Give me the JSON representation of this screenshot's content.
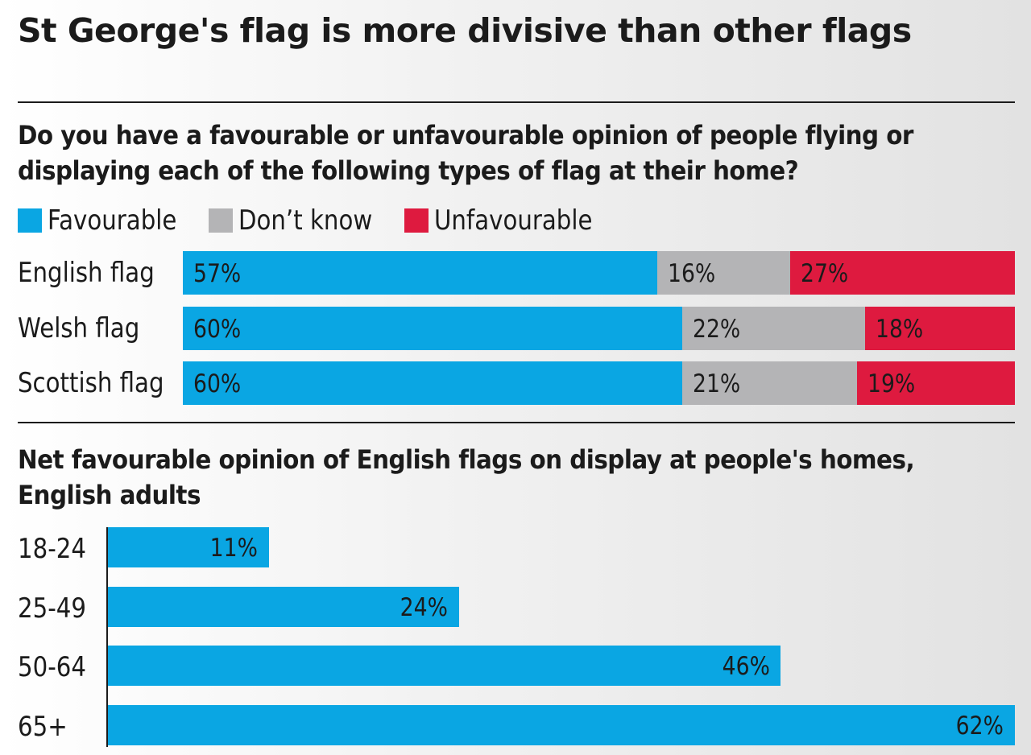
{
  "title": "St George's flag is more divisive than other flags",
  "colors": {
    "favourable": "#0aa6e3",
    "dont_know": "#b4b4b6",
    "unfavourable": "#de1a3f"
  },
  "chart_data": [
    {
      "type": "bar",
      "orientation": "horizontal",
      "stacked": true,
      "title": "Do you have a favourable or unfavourable opinion of people flying or displaying each of the following types of flag at their home?",
      "title_lines": [
        "Do you have a favourable or unfavourable opinion of people flying or",
        "displaying each of the following types of flag at their home?"
      ],
      "categories": [
        "English flag",
        "Welsh flag",
        "Scottish flag"
      ],
      "series": [
        {
          "name": "Favourable",
          "color": "#0aa6e3",
          "values": [
            57,
            60,
            60
          ],
          "labels": [
            "57%",
            "60%",
            "60%"
          ]
        },
        {
          "name": "Don’t know",
          "color": "#b4b4b6",
          "values": [
            16,
            22,
            21
          ],
          "labels": [
            "16%",
            "22%",
            "21%"
          ]
        },
        {
          "name": "Unfavourable",
          "color": "#de1a3f",
          "values": [
            27,
            18,
            19
          ],
          "labels": [
            "27%",
            "18%",
            "19%"
          ]
        }
      ],
      "legend_position": "top-left",
      "xlim": [
        0,
        100
      ]
    },
    {
      "type": "bar",
      "orientation": "horizontal",
      "title": "Net favourable opinion of English flags on display at people's homes, English adults",
      "title_lines": [
        "Net favourable opinion of English flags on display at people's homes,",
        "English adults"
      ],
      "categories": [
        "18-24",
        "25-49",
        "50-64",
        "65+"
      ],
      "values": [
        11,
        24,
        46,
        62
      ],
      "labels": [
        "11%",
        "24%",
        "46%",
        "62%"
      ],
      "color": "#0aa6e3",
      "xlim": [
        0,
        62
      ]
    }
  ]
}
